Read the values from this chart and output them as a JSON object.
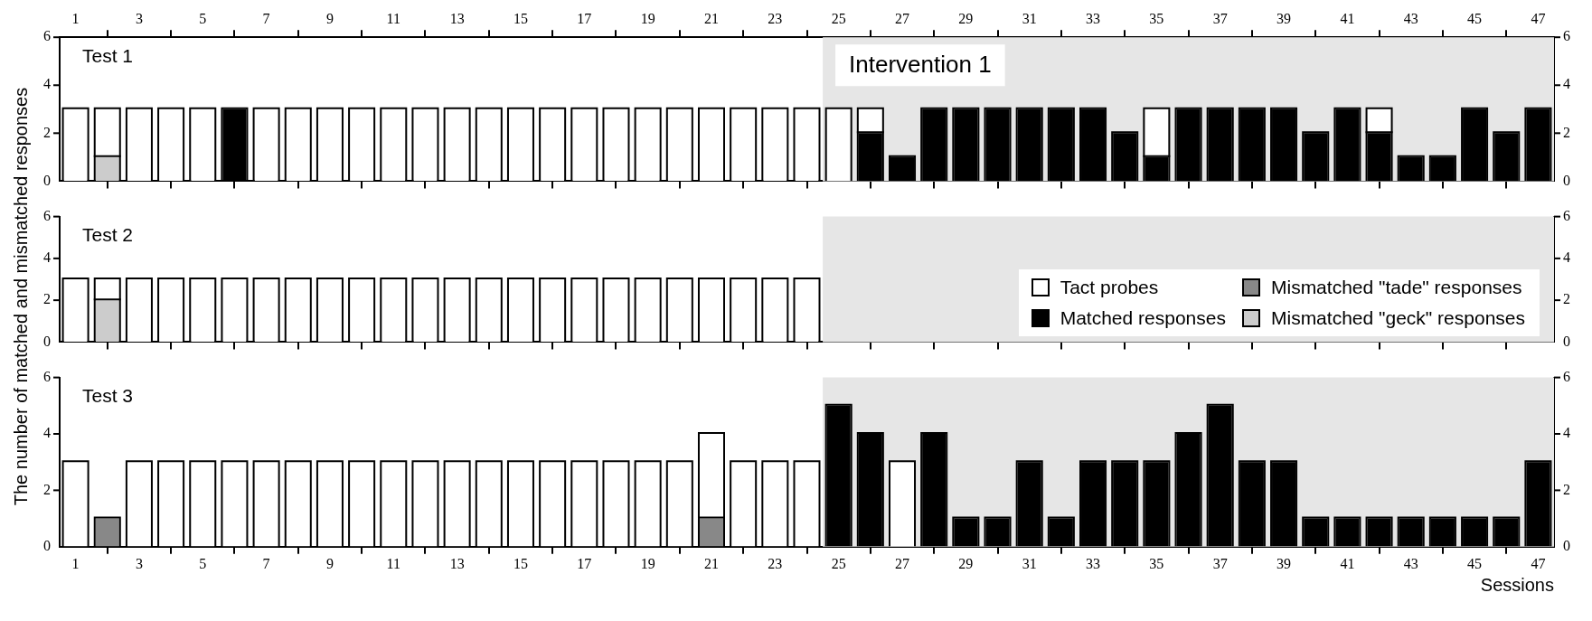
{
  "chart_data": [
    {
      "type": "bar",
      "stacked": true,
      "title": "Test 1",
      "x": [
        1,
        2,
        3,
        4,
        5,
        6,
        7,
        8,
        9,
        10,
        11,
        12,
        13,
        14,
        15,
        16,
        17,
        18,
        19,
        20,
        21,
        22,
        23,
        24,
        25,
        26,
        27,
        28,
        29,
        30,
        31,
        32,
        33,
        34,
        35,
        36,
        37,
        38,
        39,
        40,
        41,
        42,
        43,
        44,
        45,
        46,
        47
      ],
      "xlim": [
        0.5,
        47.5
      ],
      "xticks": [
        1,
        3,
        5,
        7,
        9,
        11,
        13,
        15,
        17,
        19,
        21,
        23,
        25,
        27,
        29,
        31,
        33,
        35,
        37,
        39,
        41,
        43,
        45,
        47
      ],
      "x2lim": [
        0.5,
        47.5
      ],
      "x2ticks": [
        1,
        3,
        5,
        7,
        9,
        11,
        13,
        15,
        17,
        19,
        21,
        23,
        25,
        27,
        29,
        31,
        33,
        35,
        37,
        39,
        41,
        43,
        45,
        47
      ],
      "ylim": [
        0,
        6
      ],
      "yticks": [
        0,
        2,
        4,
        6
      ],
      "y2lim": [
        0,
        6
      ],
      "y2ticks": [
        0,
        2,
        4,
        6
      ],
      "tick_labels": "y",
      "bands": [
        {
          "axis": "x",
          "from": 24.5,
          "to": 47.5,
          "label": "Intervention 1",
          "color": "#e6e6e6"
        }
      ],
      "series": [
        {
          "color": "#000000",
          "values": [
            null,
            null,
            null,
            null,
            null,
            3,
            null,
            null,
            null,
            null,
            null,
            null,
            null,
            null,
            null,
            null,
            null,
            null,
            null,
            null,
            null,
            null,
            null,
            null,
            null,
            2,
            1,
            3,
            3,
            3,
            3,
            3,
            3,
            2,
            1,
            3,
            3,
            3,
            3,
            2,
            3,
            2,
            1,
            1,
            3,
            2,
            3
          ]
        },
        {
          "color": "#888888",
          "values": [
            null,
            null,
            null,
            null,
            null,
            null,
            null,
            null,
            null,
            null,
            null,
            null,
            null,
            null,
            null,
            null,
            null,
            null,
            null,
            null,
            null,
            null,
            null,
            null,
            null,
            null,
            null,
            null,
            null,
            null,
            null,
            null,
            null,
            null,
            null,
            null,
            null,
            null,
            null,
            null,
            null,
            null,
            null,
            null,
            null,
            null,
            null
          ]
        },
        {
          "color": "#cccccc",
          "values": [
            null,
            1,
            null,
            null,
            null,
            null,
            null,
            null,
            null,
            null,
            null,
            null,
            null,
            null,
            null,
            null,
            null,
            null,
            null,
            null,
            null,
            null,
            null,
            null,
            null,
            null,
            null,
            null,
            null,
            null,
            null,
            null,
            null,
            null,
            null,
            null,
            null,
            null,
            null,
            null,
            null,
            null,
            null,
            null,
            null,
            null,
            null
          ]
        },
        {
          "color": "#ffffff",
          "values": [
            3,
            2,
            3,
            3,
            3,
            null,
            3,
            3,
            3,
            3,
            3,
            3,
            3,
            3,
            3,
            3,
            3,
            3,
            3,
            3,
            3,
            3,
            3,
            3,
            3,
            1,
            null,
            null,
            null,
            null,
            null,
            null,
            null,
            null,
            2,
            null,
            null,
            null,
            null,
            null,
            null,
            1,
            null,
            null,
            null,
            null,
            null
          ]
        }
      ]
    },
    {
      "type": "bar",
      "stacked": true,
      "title": "Test 2",
      "ylabel": "The number of matched  and mismatched responses",
      "legend": "bottom right",
      "x": [
        1,
        2,
        3,
        4,
        5,
        6,
        7,
        8,
        9,
        10,
        11,
        12,
        13,
        14,
        15,
        16,
        17,
        18,
        19,
        20,
        21,
        22,
        23,
        24
      ],
      "xlim": [
        0.5,
        47.5
      ],
      "xticks": [
        1,
        3,
        5,
        7,
        9,
        11,
        13,
        15,
        17,
        19,
        21,
        23,
        25,
        27,
        29,
        31,
        33,
        35,
        37,
        39,
        41,
        43,
        45,
        47
      ],
      "ylim": [
        0,
        6
      ],
      "yticks": [
        0,
        2,
        4,
        6
      ],
      "y2lim": [
        0,
        6
      ],
      "y2ticks": [
        0,
        2,
        4,
        6
      ],
      "tick_labels": "y",
      "bands": [
        {
          "axis": "x",
          "from": 24.5,
          "to": 47.5,
          "color": "#e6e6e6"
        }
      ],
      "series": [
        {
          "name": "Matched responses",
          "color": "#000000",
          "values": [
            null,
            null,
            null,
            null,
            null,
            null,
            null,
            null,
            null,
            null,
            null,
            null,
            null,
            null,
            null,
            null,
            null,
            null,
            null,
            null,
            null,
            null,
            null,
            null
          ]
        },
        {
          "name": "Mismatched \"tade\"  responses",
          "color": "#888888",
          "values": [
            null,
            null,
            null,
            null,
            null,
            null,
            null,
            null,
            null,
            null,
            null,
            null,
            null,
            null,
            null,
            null,
            null,
            null,
            null,
            null,
            null,
            null,
            null,
            null
          ]
        },
        {
          "name": "Mismatched \"geck\" responses",
          "color": "#cccccc",
          "values": [
            null,
            2,
            null,
            null,
            null,
            null,
            null,
            null,
            null,
            null,
            null,
            null,
            null,
            null,
            null,
            null,
            null,
            null,
            null,
            null,
            null,
            null,
            null,
            null
          ]
        },
        {
          "name": "Tact probes",
          "color": "#ffffff",
          "values": [
            3,
            1,
            3,
            3,
            3,
            3,
            3,
            3,
            3,
            3,
            3,
            3,
            3,
            3,
            3,
            3,
            3,
            3,
            3,
            3,
            3,
            3,
            3,
            3
          ]
        }
      ]
    },
    {
      "type": "bar",
      "stacked": true,
      "title": "Test 3",
      "xlabel": "Sessions",
      "x": [
        1,
        2,
        3,
        4,
        5,
        6,
        7,
        8,
        9,
        10,
        11,
        12,
        13,
        14,
        15,
        16,
        17,
        18,
        19,
        20,
        21,
        22,
        23,
        24,
        25,
        26,
        27,
        28,
        29,
        30,
        31,
        32,
        33,
        34,
        35,
        36,
        37,
        38,
        39,
        40,
        41,
        42,
        43,
        44,
        45,
        46,
        47
      ],
      "xlim": [
        0.5,
        47.5
      ],
      "xticks": [
        1,
        3,
        5,
        7,
        9,
        11,
        13,
        15,
        17,
        19,
        21,
        23,
        25,
        27,
        29,
        31,
        33,
        35,
        37,
        39,
        41,
        43,
        45,
        47
      ],
      "ylim": [
        0,
        6
      ],
      "yticks": [
        0,
        2,
        4,
        6
      ],
      "y2lim": [
        0,
        6
      ],
      "y2ticks": [
        0,
        2,
        4,
        6
      ],
      "bands": [
        {
          "axis": "x",
          "from": 24.5,
          "to": 47.5,
          "color": "#e6e6e6"
        }
      ],
      "series": [
        {
          "color": "#000000",
          "values": [
            null,
            null,
            null,
            null,
            null,
            null,
            null,
            null,
            null,
            null,
            null,
            null,
            null,
            null,
            null,
            null,
            null,
            null,
            null,
            null,
            null,
            null,
            null,
            null,
            5,
            4,
            null,
            4,
            1,
            1,
            3,
            1,
            3,
            3,
            3,
            4,
            5,
            3,
            3,
            1,
            1,
            1,
            1,
            1,
            1,
            1,
            3
          ]
        },
        {
          "color": "#888888",
          "values": [
            null,
            1,
            null,
            null,
            null,
            null,
            null,
            null,
            null,
            null,
            null,
            null,
            null,
            null,
            null,
            null,
            null,
            null,
            null,
            null,
            1,
            null,
            null,
            null,
            null,
            null,
            null,
            null,
            null,
            null,
            null,
            null,
            null,
            null,
            null,
            null,
            null,
            null,
            null,
            null,
            null,
            null,
            null,
            null,
            null,
            null,
            null
          ]
        },
        {
          "color": "#cccccc",
          "values": [
            null,
            null,
            null,
            null,
            null,
            null,
            null,
            null,
            null,
            null,
            null,
            null,
            null,
            null,
            null,
            null,
            null,
            null,
            null,
            null,
            null,
            null,
            null,
            null,
            null,
            null,
            null,
            null,
            null,
            null,
            null,
            null,
            null,
            null,
            null,
            null,
            null,
            null,
            null,
            null,
            null,
            null,
            null,
            null,
            null,
            null,
            null
          ]
        },
        {
          "color": "#ffffff",
          "values": [
            3,
            null,
            3,
            3,
            3,
            3,
            3,
            3,
            3,
            3,
            3,
            3,
            3,
            3,
            3,
            3,
            3,
            3,
            3,
            3,
            3,
            3,
            3,
            3,
            null,
            null,
            3,
            null,
            null,
            null,
            null,
            null,
            null,
            null,
            null,
            null,
            null,
            null,
            null,
            null,
            null,
            null,
            null,
            null,
            null,
            null,
            null
          ]
        }
      ]
    }
  ]
}
